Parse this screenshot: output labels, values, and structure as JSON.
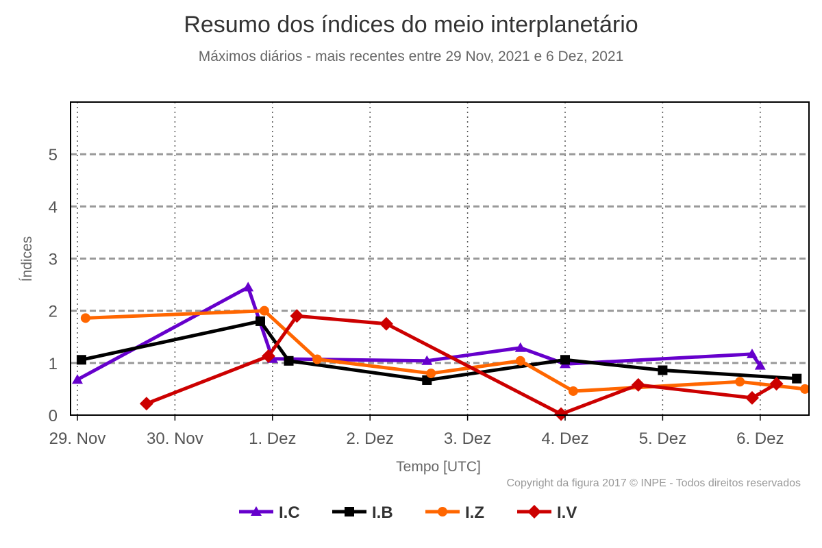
{
  "chart_data": {
    "type": "line",
    "title": "Resumo dos índices do meio interplanetário",
    "subtitle": "Máximos diários - mais recentes entre 29 Nov, 2021 e 6 Dez, 2021",
    "xlabel": "Tempo [UTC]",
    "ylabel": "Índices",
    "credit": "Copyright da figura 2017 © INPE - Todos direitos reservados",
    "x_ticks": [
      "29. Nov",
      "30. Nov",
      "1. Dez",
      "2. Dez",
      "3. Dez",
      "4. Dez",
      "5. Dez",
      "6. Dez"
    ],
    "y_ticks": [
      "0",
      "1",
      "2",
      "3",
      "4",
      "5"
    ],
    "xlim": [
      "2021-11-29T00:00",
      "2021-12-06T12:00"
    ],
    "ylim": [
      0,
      6
    ],
    "grid": {
      "x": "dotted",
      "y": "dashed"
    },
    "legend_position": "bottom-center",
    "series": [
      {
        "name": "I.C",
        "color": "#6600cc",
        "marker": "triangle",
        "points": [
          {
            "x": "2021-11-29T00:00",
            "y": 0.68
          },
          {
            "x": "2021-11-30T18:00",
            "y": 2.45
          },
          {
            "x": "2021-12-01T00:00",
            "y": 1.08
          },
          {
            "x": "2021-12-02T14:00",
            "y": 1.04
          },
          {
            "x": "2021-12-03T13:00",
            "y": 1.29
          },
          {
            "x": "2021-12-04T00:00",
            "y": 0.98
          },
          {
            "x": "2021-12-05T22:00",
            "y": 1.17
          },
          {
            "x": "2021-12-06T00:00",
            "y": 0.95
          }
        ]
      },
      {
        "name": "I.B",
        "color": "#000000",
        "marker": "square",
        "points": [
          {
            "x": "2021-11-29T01:00",
            "y": 1.06
          },
          {
            "x": "2021-11-30T21:00",
            "y": 1.8
          },
          {
            "x": "2021-12-01T04:00",
            "y": 1.04
          },
          {
            "x": "2021-12-02T14:00",
            "y": 0.67
          },
          {
            "x": "2021-12-04T00:00",
            "y": 1.06
          },
          {
            "x": "2021-12-05T00:00",
            "y": 0.86
          },
          {
            "x": "2021-12-06T09:00",
            "y": 0.7
          }
        ]
      },
      {
        "name": "I.Z",
        "color": "#ff6600",
        "marker": "circle",
        "points": [
          {
            "x": "2021-11-29T02:00",
            "y": 1.86
          },
          {
            "x": "2021-11-30T22:00",
            "y": 2.0
          },
          {
            "x": "2021-12-01T11:00",
            "y": 1.07
          },
          {
            "x": "2021-12-02T15:00",
            "y": 0.8
          },
          {
            "x": "2021-12-03T13:00",
            "y": 1.04
          },
          {
            "x": "2021-12-04T02:00",
            "y": 0.46
          },
          {
            "x": "2021-12-05T19:00",
            "y": 0.64
          },
          {
            "x": "2021-12-06T11:00",
            "y": 0.5
          }
        ]
      },
      {
        "name": "I.V",
        "color": "#cc0000",
        "marker": "diamond",
        "points": [
          {
            "x": "2021-11-29T17:00",
            "y": 0.22
          },
          {
            "x": "2021-11-30T23:00",
            "y": 1.13
          },
          {
            "x": "2021-12-01T06:00",
            "y": 1.9
          },
          {
            "x": "2021-12-02T04:00",
            "y": 1.75
          },
          {
            "x": "2021-12-03T23:00",
            "y": 0.02
          },
          {
            "x": "2021-12-04T18:00",
            "y": 0.58
          },
          {
            "x": "2021-12-05T22:00",
            "y": 0.33
          },
          {
            "x": "2021-12-06T04:00",
            "y": 0.6
          }
        ]
      }
    ]
  }
}
